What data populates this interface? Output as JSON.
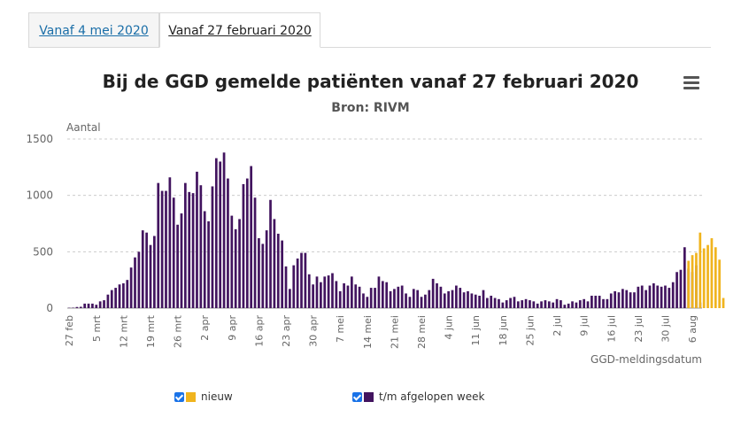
{
  "tabs": [
    {
      "label": "Vanaf 4 mei 2020"
    },
    {
      "label": "Vanaf 27 februari 2020"
    }
  ],
  "chart_data": {
    "type": "bar",
    "title": "Bij de GGD gemelde patiënten vanaf 27 februari 2020",
    "subtitle": "Bron: RIVM",
    "ylabel": "Aantal",
    "xlabel": "GGD-meldingsdatum",
    "ylim": [
      0,
      1500
    ],
    "yticks": [
      0,
      500,
      1000,
      1500
    ],
    "grid": true,
    "x_tick_labels": [
      "27 feb",
      "5 mrt",
      "12 mrt",
      "19 mrt",
      "26 mrt",
      "2 apr",
      "9 apr",
      "16 apr",
      "23 apr",
      "30 apr",
      "7 mei",
      "14 mei",
      "21 mei",
      "28 mei",
      "4 jun",
      "11 jun",
      "18 jun",
      "25 jun",
      "2 jul",
      "9 jul",
      "16 jul",
      "23 jul",
      "30 jul",
      "6 aug"
    ],
    "series": [
      {
        "name": "t/m afgelopen week",
        "color": "#42145f",
        "values": [
          3,
          4,
          10,
          12,
          40,
          40,
          40,
          30,
          60,
          70,
          120,
          160,
          180,
          210,
          220,
          250,
          360,
          450,
          500,
          690,
          670,
          560,
          640,
          1110,
          1040,
          1040,
          1160,
          980,
          740,
          840,
          1110,
          1030,
          1020,
          1210,
          1090,
          860,
          770,
          1080,
          1330,
          1300,
          1380,
          1150,
          820,
          700,
          790,
          1100,
          1150,
          1260,
          980,
          620,
          570,
          690,
          960,
          790,
          660,
          600,
          370,
          170,
          380,
          440,
          490,
          490,
          300,
          210,
          280,
          230,
          280,
          290,
          310,
          240,
          150,
          220,
          200,
          280,
          210,
          190,
          130,
          100,
          180,
          180,
          280,
          240,
          230,
          150,
          170,
          190,
          200,
          130,
          100,
          170,
          160,
          100,
          120,
          160,
          260,
          220,
          190,
          130,
          150,
          160,
          200,
          180,
          140,
          150,
          130,
          120,
          110,
          160,
          90,
          110,
          90,
          80,
          50,
          70,
          90,
          100,
          60,
          70,
          80,
          70,
          60,
          40,
          60,
          70,
          60,
          50,
          80,
          70,
          30,
          40,
          60,
          50,
          70,
          80,
          60,
          110,
          110,
          110,
          80,
          80,
          130,
          150,
          140,
          170,
          160,
          140,
          140,
          190,
          200,
          160,
          200,
          220,
          200,
          190,
          200,
          180,
          230,
          320,
          340,
          540,
          350,
          320,
          380,
          50
        ]
      },
      {
        "name": "nieuw",
        "color": "#f0b41e",
        "values": [
          0,
          0,
          0,
          0,
          0,
          0,
          0,
          0,
          0,
          0,
          0,
          0,
          0,
          0,
          0,
          0,
          0,
          0,
          0,
          0,
          0,
          0,
          0,
          0,
          0,
          0,
          0,
          0,
          0,
          0,
          0,
          0,
          0,
          0,
          0,
          0,
          0,
          0,
          0,
          0,
          0,
          0,
          0,
          0,
          0,
          0,
          0,
          0,
          0,
          0,
          0,
          0,
          0,
          0,
          0,
          0,
          0,
          0,
          0,
          0,
          0,
          0,
          0,
          0,
          0,
          0,
          0,
          0,
          0,
          0,
          0,
          0,
          0,
          0,
          0,
          0,
          0,
          0,
          0,
          0,
          0,
          0,
          0,
          0,
          0,
          0,
          0,
          0,
          0,
          0,
          0,
          0,
          0,
          0,
          0,
          0,
          0,
          0,
          0,
          0,
          0,
          0,
          0,
          0,
          0,
          0,
          0,
          0,
          0,
          0,
          0,
          0,
          0,
          0,
          0,
          0,
          0,
          0,
          0,
          0,
          0,
          0,
          0,
          0,
          0,
          0,
          0,
          0,
          0,
          0,
          0,
          0,
          0,
          0,
          0,
          0,
          0,
          0,
          0,
          0,
          0,
          0,
          0,
          0,
          0,
          0,
          0,
          0,
          0,
          0,
          0,
          0,
          0,
          0,
          0,
          0,
          0,
          0,
          0,
          0,
          420,
          470,
          490,
          670,
          530,
          560,
          620,
          540,
          430,
          90
        ]
      }
    ]
  },
  "legend": {
    "new_label": "nieuw",
    "past_label": "t/m afgelopen week"
  }
}
